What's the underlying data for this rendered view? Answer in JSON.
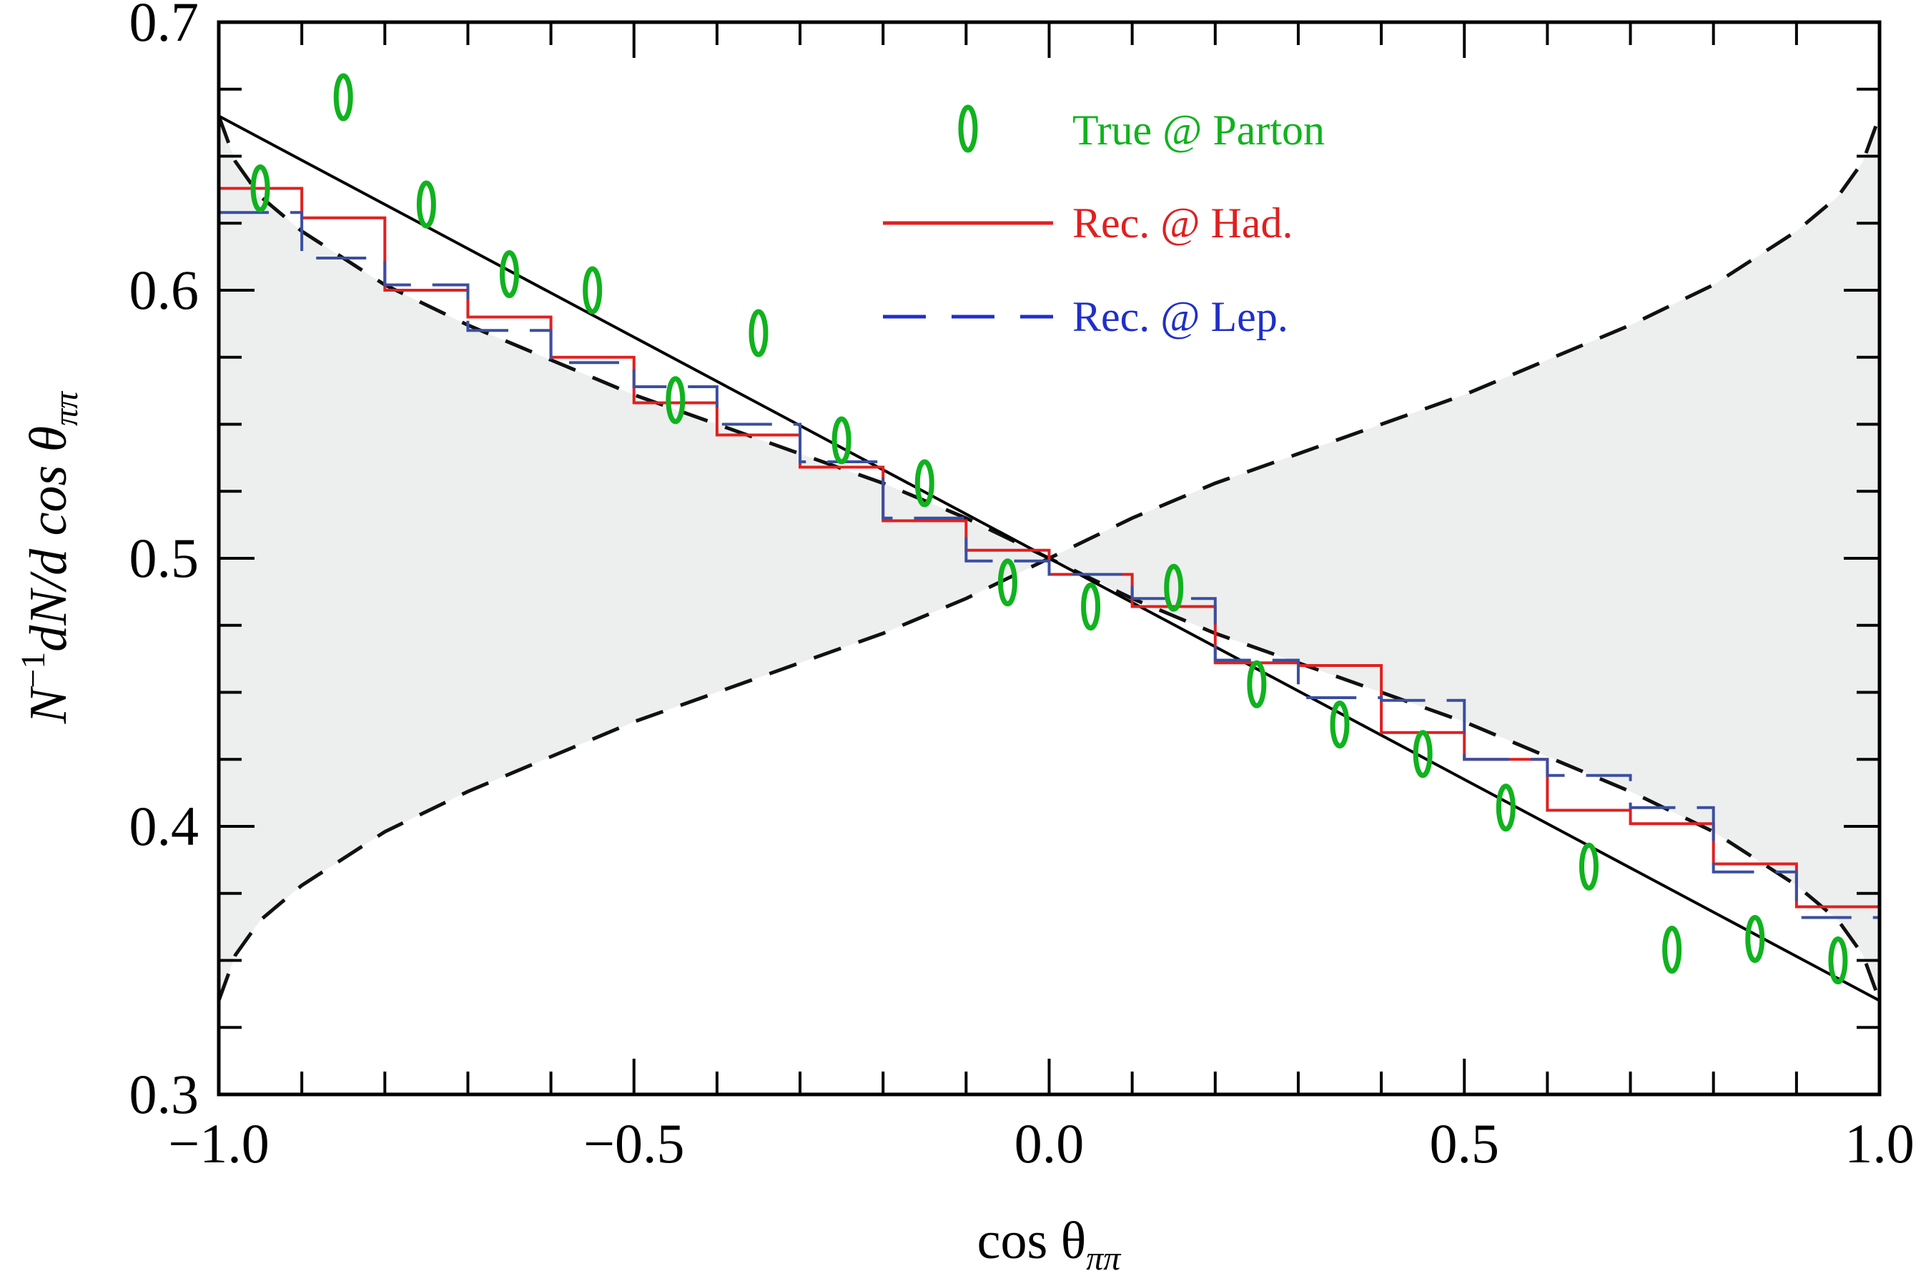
{
  "chart_data": {
    "type": "line",
    "title": "",
    "xlabel": "cos θ_ππ",
    "xlabel_parts": {
      "base": "cos θ",
      "sub": "ππ"
    },
    "ylabel": "N^-1 dN/d cos θ_ππ",
    "ylabel_parts": {
      "pre": "N",
      "sup": "−1",
      "mid": "dN/d cos θ",
      "sub": "ππ"
    },
    "xlim": [
      -1.0,
      1.0
    ],
    "ylim": [
      0.3,
      0.7
    ],
    "x_ticks": [
      -1.0,
      -0.5,
      0.0,
      0.5,
      1.0
    ],
    "x_tick_labels": [
      "−1.0",
      "−0.5",
      "0.0",
      "0.5",
      "1.0"
    ],
    "x_minor_step": 0.1,
    "y_ticks": [
      0.3,
      0.4,
      0.5,
      0.6,
      0.7
    ],
    "y_tick_labels": [
      "0.3",
      "0.4",
      "0.5",
      "0.6",
      "0.7"
    ],
    "y_minor_step": 0.025,
    "grid": false,
    "legend_position": "top-center",
    "bin_edges": [
      -1.0,
      -0.9,
      -0.8,
      -0.7,
      -0.6,
      -0.5,
      -0.4,
      -0.3,
      -0.2,
      -0.1,
      0.0,
      0.1,
      0.2,
      0.3,
      0.4,
      0.5,
      0.6,
      0.7,
      0.8,
      0.9,
      1.0
    ],
    "series": [
      {
        "name": "True @ Parton",
        "style": "ellipse-markers",
        "color": "#10b21e",
        "x": [
          -0.95,
          -0.85,
          -0.75,
          -0.65,
          -0.55,
          -0.45,
          -0.35,
          -0.25,
          -0.15,
          -0.05,
          0.05,
          0.15,
          0.25,
          0.35,
          0.45,
          0.55,
          0.65,
          0.75,
          0.85,
          0.95
        ],
        "values": [
          0.638,
          0.672,
          0.632,
          0.606,
          0.6,
          0.559,
          0.584,
          0.544,
          0.528,
          0.491,
          0.482,
          0.489,
          0.453,
          0.438,
          0.427,
          0.407,
          0.385,
          0.354,
          0.358,
          0.35
        ]
      },
      {
        "name": "Rec. @ Had.",
        "style": "step-solid",
        "color": "#e02020",
        "values": [
          0.638,
          0.627,
          0.6,
          0.59,
          0.575,
          0.558,
          0.546,
          0.534,
          0.514,
          0.503,
          0.494,
          0.482,
          0.461,
          0.46,
          0.435,
          0.425,
          0.406,
          0.401,
          0.386,
          0.37
        ]
      },
      {
        "name": "Rec. @ Lep.",
        "style": "step-dashed",
        "color": "#3a4fa0",
        "values": [
          0.629,
          0.612,
          0.602,
          0.585,
          0.573,
          0.564,
          0.55,
          0.536,
          0.515,
          0.499,
          0.494,
          0.485,
          0.462,
          0.448,
          0.447,
          0.425,
          0.419,
          0.407,
          0.383,
          0.366
        ]
      },
      {
        "name": "theory-line",
        "style": "solid-black",
        "color": "#000000",
        "x": [
          -1.0,
          1.0
        ],
        "values": [
          0.665,
          0.335
        ]
      },
      {
        "name": "envelope-upper",
        "style": "dashed-black",
        "color": "#111111",
        "x": [
          -1.0,
          -0.98,
          -0.95,
          -0.9,
          -0.8,
          -0.7,
          -0.6,
          -0.5,
          -0.4,
          -0.3,
          -0.2,
          -0.1,
          0.0,
          0.1,
          0.2,
          0.3,
          0.4,
          0.5,
          0.6,
          0.7,
          0.8,
          0.9,
          0.95,
          0.98,
          1.0
        ],
        "values": [
          0.665,
          0.648,
          0.635,
          0.622,
          0.602,
          0.587,
          0.574,
          0.561,
          0.55,
          0.539,
          0.528,
          0.515,
          0.5,
          0.515,
          0.528,
          0.539,
          0.55,
          0.561,
          0.574,
          0.587,
          0.602,
          0.622,
          0.635,
          0.648,
          0.665
        ]
      },
      {
        "name": "envelope-lower",
        "style": "dashed-black",
        "color": "#111111",
        "x": [
          -1.0,
          -0.98,
          -0.95,
          -0.9,
          -0.8,
          -0.7,
          -0.6,
          -0.5,
          -0.4,
          -0.3,
          -0.2,
          -0.1,
          0.0,
          0.1,
          0.2,
          0.3,
          0.4,
          0.5,
          0.6,
          0.7,
          0.8,
          0.9,
          0.95,
          0.98,
          1.0
        ],
        "values": [
          0.335,
          0.352,
          0.365,
          0.378,
          0.398,
          0.413,
          0.426,
          0.439,
          0.45,
          0.461,
          0.472,
          0.485,
          0.5,
          0.485,
          0.472,
          0.461,
          0.45,
          0.439,
          0.426,
          0.413,
          0.398,
          0.378,
          0.365,
          0.352,
          0.335
        ]
      }
    ],
    "shaded_region": {
      "description": "band between envelope curves",
      "color": "#edefee"
    }
  },
  "legend": {
    "items": [
      {
        "label": "True @ Parton",
        "color": "#10b21e",
        "marker": "ellipse"
      },
      {
        "label": "Rec. @ Had.",
        "color": "#e02020",
        "marker": "solid-line"
      },
      {
        "label": "Rec. @ Lep.",
        "color": "#1f2fc8",
        "marker": "dashed-line"
      }
    ]
  }
}
